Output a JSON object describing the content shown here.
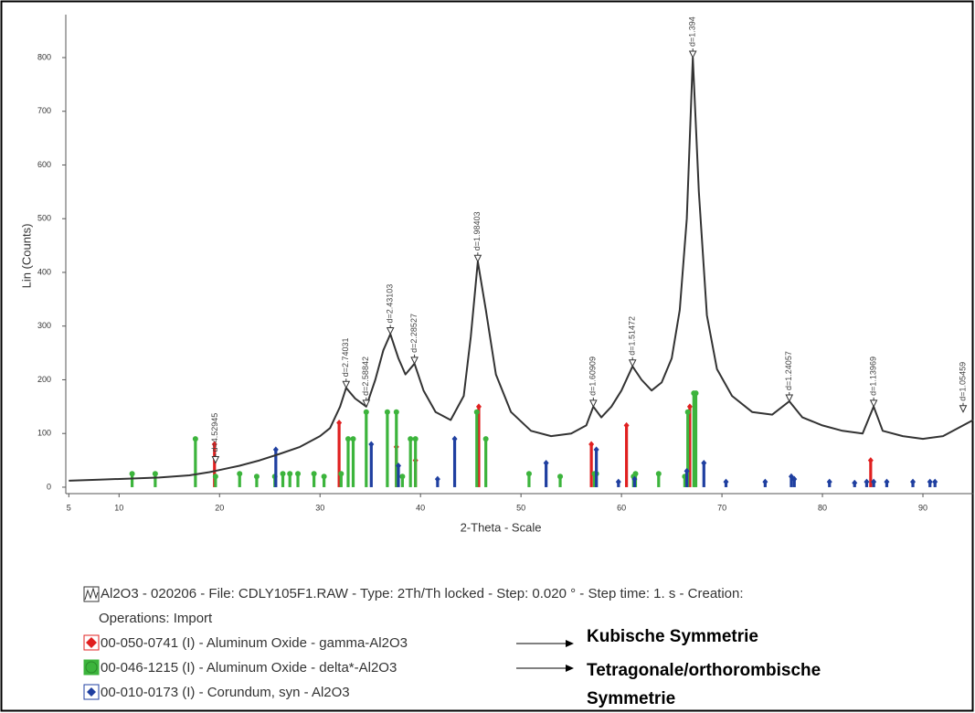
{
  "chart_data": {
    "type": "line",
    "x_label": "2-Theta - Scale",
    "y_label": "Lin (Counts)",
    "xlim": [
      4.7,
      95
    ],
    "ylim": [
      -12,
      880
    ],
    "xticks": [
      5,
      10,
      20,
      30,
      40,
      50,
      60,
      70,
      80,
      90
    ],
    "yticks": [
      0,
      100,
      200,
      300,
      400,
      500,
      600,
      700,
      800
    ],
    "pattern": {
      "name": "Al2O3 - 020206 - File: CDLY105F1.RAW - Type: 2Th/Th locked - Step: 0.020 ° - Step time: 1. s - Creation:",
      "operations": "Operations: Import",
      "color": "#333333",
      "x": [
        5,
        8,
        11,
        14,
        17,
        19,
        20,
        22,
        24,
        26,
        28,
        30,
        31,
        32,
        32.6,
        33.5,
        34.6,
        35.5,
        36.3,
        37,
        37.8,
        38.5,
        39.4,
        40.3,
        41.5,
        43,
        44.3,
        45,
        45.7,
        46.5,
        47.5,
        49,
        51,
        53,
        55,
        56.5,
        57.2,
        58,
        59,
        60,
        61.1,
        62,
        63,
        64,
        65,
        65.8,
        66.5,
        67.1,
        67.7,
        68.5,
        69.5,
        71,
        73,
        75,
        76.7,
        78,
        80,
        82,
        84,
        85.1,
        86,
        88,
        90,
        92,
        94,
        95
      ],
      "values": [
        12,
        14,
        16,
        18,
        22,
        28,
        32,
        40,
        50,
        62,
        75,
        95,
        110,
        150,
        185,
        165,
        150,
        200,
        255,
        285,
        240,
        210,
        230,
        180,
        140,
        125,
        170,
        280,
        420,
        330,
        210,
        140,
        105,
        95,
        100,
        115,
        150,
        130,
        150,
        180,
        225,
        200,
        180,
        195,
        240,
        330,
        500,
        800,
        550,
        320,
        220,
        170,
        140,
        135,
        160,
        130,
        115,
        105,
        100,
        150,
        105,
        95,
        90,
        95,
        115,
        125
      ]
    },
    "peak_labels": [
      {
        "x": 19.6,
        "y": 45,
        "label": "d=4.52945"
      },
      {
        "x": 32.6,
        "y": 185,
        "label": "d=2.74031"
      },
      {
        "x": 34.6,
        "y": 150,
        "label": "d=2.58842"
      },
      {
        "x": 37,
        "y": 285,
        "label": "d=2.43103"
      },
      {
        "x": 39.4,
        "y": 230,
        "label": "d=2.28527"
      },
      {
        "x": 45.7,
        "y": 420,
        "label": "d=1.98403"
      },
      {
        "x": 57.2,
        "y": 150,
        "label": "d=1.60909"
      },
      {
        "x": 61.1,
        "y": 225,
        "label": "d=1.51472"
      },
      {
        "x": 67.1,
        "y": 800,
        "label": "d=1.394"
      },
      {
        "x": 76.7,
        "y": 160,
        "label": "d=1.24057"
      },
      {
        "x": 85.1,
        "y": 150,
        "label": "d=1.13969"
      },
      {
        "x": 94,
        "y": 140,
        "label": "d=1.05459"
      }
    ],
    "series": [
      {
        "name": "00-050-0741 (I) - Aluminum Oxide - gamma-Al2O3",
        "color": "#e02020",
        "marker": "diamond",
        "x": [
          19.5,
          31.9,
          37.6,
          39.5,
          45.8,
          57,
          60.5,
          66.8,
          84.8
        ],
        "values": [
          80,
          120,
          75,
          50,
          150,
          80,
          115,
          150,
          50
        ]
      },
      {
        "name": "00-046-1215 (I) - Aluminum Oxide - delta*-Al2O3",
        "color": "#3cb43c",
        "marker": "circle",
        "x": [
          11.3,
          13.6,
          17.6,
          19.6,
          22,
          23.7,
          25.5,
          26.3,
          27,
          27.8,
          29.4,
          30.4,
          32.1,
          32.8,
          33.3,
          34.6,
          36.7,
          37.6,
          38.2,
          39,
          39.5,
          45.6,
          46.5,
          50.8,
          53.9,
          57.3,
          57.5,
          61.2,
          61.4,
          63.7,
          66.3,
          66.6,
          67.2,
          67.4
        ],
        "values": [
          25,
          25,
          90,
          20,
          25,
          20,
          20,
          25,
          25,
          25,
          25,
          20,
          25,
          90,
          90,
          140,
          140,
          140,
          20,
          90,
          90,
          140,
          90,
          25,
          20,
          25,
          25,
          20,
          25,
          25,
          20,
          140,
          175,
          175
        ]
      },
      {
        "name": "00-010-0173 (I) - Corundum, syn - Al2O3",
        "color": "#1f3fa0",
        "marker": "diamond",
        "x": [
          25.6,
          35.1,
          37.8,
          41.7,
          43.4,
          52.5,
          57.5,
          59.7,
          61.3,
          66.5,
          68.2,
          70.4,
          74.3,
          76.9,
          77.2,
          80.7,
          83.2,
          84.4,
          85.1,
          86.4,
          89,
          90.7,
          91.2
        ],
        "values": [
          70,
          80,
          40,
          15,
          90,
          45,
          70,
          10,
          15,
          30,
          45,
          10,
          10,
          20,
          15,
          10,
          8,
          10,
          10,
          10,
          10,
          10,
          10
        ]
      }
    ],
    "annotations": [
      "Kubische Symmetrie",
      "Tetragonale/orthorombische",
      "Symmetrie"
    ]
  }
}
